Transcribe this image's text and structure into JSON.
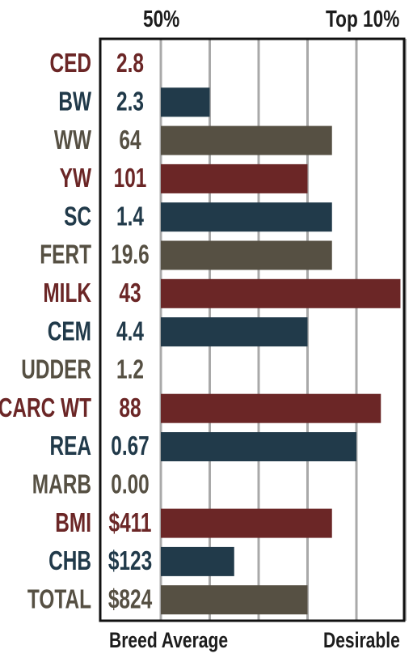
{
  "header": {
    "left_label": "50%",
    "right_label": "Top 10%"
  },
  "footer": {
    "left_label": "Breed Average",
    "right_label": "Desirable"
  },
  "colors": {
    "red": "#6b2626",
    "blue": "#213a4a",
    "gray": "#565043",
    "grid": "#a9a9a9",
    "frame": "#111111"
  },
  "chart_data": {
    "type": "bar",
    "orientation": "horizontal",
    "categories": [
      "CED",
      "BW",
      "WW",
      "YW",
      "SC",
      "FERT",
      "MILK",
      "CEM",
      "UDDER",
      "CARC WT",
      "REA",
      "MARB",
      "BMI",
      "CHB",
      "TOTAL"
    ],
    "value_labels": [
      "2.8",
      "2.3",
      "64",
      "101",
      "1.4",
      "19.6",
      "43",
      "4.4",
      "1.2",
      "88",
      "0.67",
      "0.00",
      "$411",
      "$123",
      "$824"
    ],
    "values": [
      0,
      1.0,
      3.5,
      3.0,
      3.5,
      3.5,
      4.9,
      3.0,
      0,
      4.5,
      4.0,
      0,
      3.5,
      1.5,
      3.0
    ],
    "colors": [
      "red",
      "blue",
      "gray",
      "red",
      "blue",
      "gray",
      "red",
      "blue",
      "gray",
      "red",
      "blue",
      "gray",
      "red",
      "blue",
      "gray"
    ],
    "xlim": [
      0,
      5
    ],
    "grid": true
  }
}
